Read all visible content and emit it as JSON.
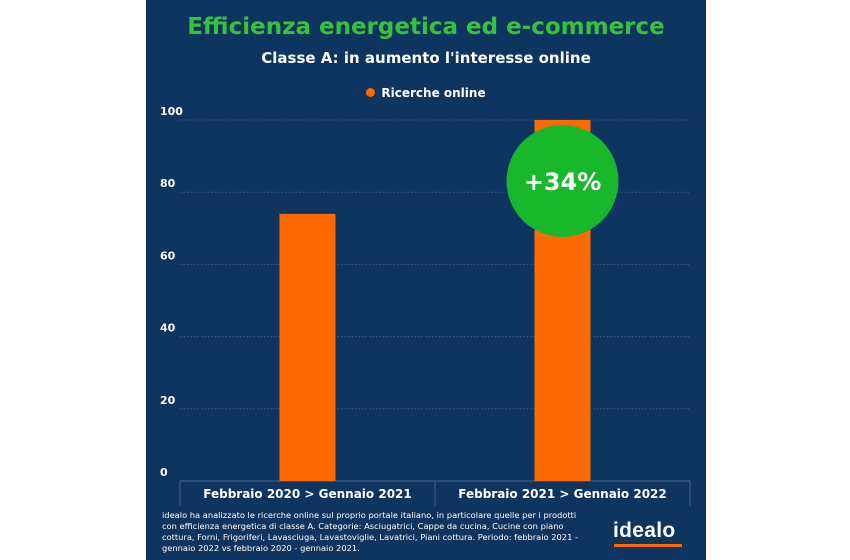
{
  "colors": {
    "background": "#0e3460",
    "bar": "#ff6a00",
    "title": "#37c23b",
    "badge": "#19b82c",
    "grid": "#3e5f86",
    "text": "#ffffff"
  },
  "chart_data": {
    "type": "bar",
    "title": "Efficienza energetica ed e-commerce",
    "subtitle": "Classe A: in aumento l'interesse online",
    "categories": [
      "Febbraio 2020 > Gennaio 2021",
      "Febbraio 2021 > Gennaio 2022"
    ],
    "series": [
      {
        "name": "Ricerche online",
        "values": [
          74,
          100
        ]
      }
    ],
    "ylim": [
      0,
      100
    ],
    "yticks": [
      0,
      20,
      40,
      60,
      80,
      100
    ],
    "grid": true,
    "legend_position": "top-center",
    "annotation": {
      "text": "+34%",
      "category_index": 1
    }
  },
  "footnote": "idealo ha analizzato le ricerche online sul proprio portale italiano, in particolare quelle per i prodotti con efficienza energetica di classe A. Categorie: Asciugatrici, Cappe da cucina, Cucine con piano cottura, Forni, Frigoriferi, Lavasciuga, Lavastoviglie, Lavatrici, Piani cottura. Periodo: febbraio 2021 - gennaio 2022 vs febbraio 2020 - gennaio 2021.",
  "logo": {
    "text": "idealo",
    "icon": "idealo-logo"
  }
}
